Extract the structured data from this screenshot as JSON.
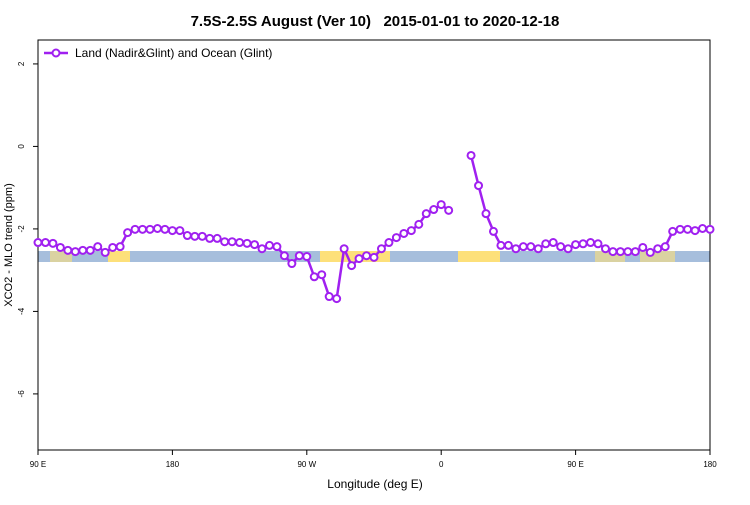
{
  "chart_data": {
    "type": "line",
    "title": "7.5S-2.5S August (Ver 10)   2015-01-01 to 2020-12-18",
    "xlabel": "Longitude (deg E)",
    "ylabel": "XCO2 - MLO trend (ppm)",
    "x": [
      90,
      95,
      100,
      105,
      110,
      115,
      120,
      125,
      130,
      135,
      140,
      145,
      150,
      155,
      160,
      165,
      170,
      175,
      180,
      185,
      190,
      195,
      200,
      205,
      210,
      215,
      220,
      225,
      230,
      235,
      240,
      245,
      250,
      255,
      260,
      265,
      270,
      275,
      280,
      285,
      290,
      295,
      300,
      305,
      310,
      315,
      320,
      325,
      330,
      335,
      340,
      345,
      350,
      355,
      360,
      365,
      370,
      375,
      380,
      385,
      390,
      395,
      400,
      405,
      410,
      415,
      420,
      425,
      430,
      435,
      440,
      445,
      450,
      455,
      460,
      465,
      470,
      475,
      480,
      485,
      490,
      495,
      500,
      505,
      510,
      515,
      520,
      525,
      530,
      535,
      540
    ],
    "series": [
      {
        "name": "Land (Nadir&Glint) and Ocean (Glint)",
        "color": "#a020f0",
        "values": [
          -2.33,
          -2.33,
          -2.35,
          -2.45,
          -2.52,
          -2.55,
          -2.52,
          -2.52,
          -2.43,
          -2.57,
          -2.45,
          -2.43,
          -2.09,
          -2.01,
          -2.01,
          -2.01,
          -1.99,
          -2.01,
          -2.04,
          -2.04,
          -2.16,
          -2.18,
          -2.18,
          -2.23,
          -2.23,
          -2.31,
          -2.31,
          -2.33,
          -2.35,
          -2.38,
          -2.48,
          -2.4,
          -2.43,
          -2.65,
          -2.84,
          -2.65,
          -2.67,
          -3.16,
          -3.11,
          -3.64,
          -3.69,
          -2.48,
          -2.89,
          -2.72,
          -2.65,
          -2.69,
          -2.48,
          -2.33,
          -2.21,
          -2.11,
          -2.04,
          -1.89,
          -1.63,
          -1.53,
          -1.41,
          -1.55,
          null,
          null,
          -0.22,
          -0.95,
          -1.63,
          -2.06,
          -2.4,
          -2.4,
          -2.48,
          -2.43,
          -2.43,
          -2.48,
          -2.36,
          -2.33,
          -2.43,
          -2.48,
          -2.38,
          -2.36,
          -2.33,
          -2.36,
          -2.48,
          -2.55,
          -2.55,
          -2.55,
          -2.55,
          -2.45,
          -2.57,
          -2.48,
          -2.43,
          -2.06,
          -2.01,
          -2.01,
          -2.04,
          -1.99,
          -2.01
        ]
      }
    ],
    "xlim": [
      90,
      540
    ],
    "xticks": [
      {
        "value": 90,
        "label": "90 E"
      },
      {
        "value": 180,
        "label": "180"
      },
      {
        "value": 270,
        "label": "90 W"
      },
      {
        "value": 360,
        "label": "0"
      },
      {
        "value": 450,
        "label": "90 E"
      },
      {
        "value": 540,
        "label": "180"
      }
    ],
    "ylim": [
      -7.36,
      2.58
    ],
    "yticks": [
      2,
      0,
      -2,
      -4,
      -6
    ],
    "legend": "top-left"
  }
}
